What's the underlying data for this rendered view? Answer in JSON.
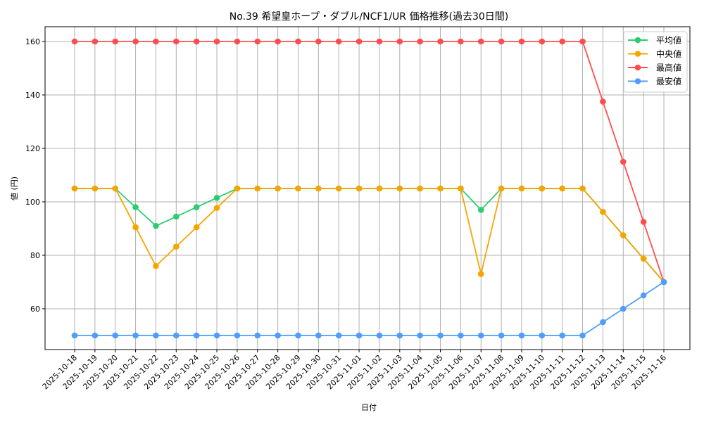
{
  "chart_data": {
    "type": "line",
    "title": "No.39 希望皇ホープ・ダブル/NCF1/UR 価格推移(過去30日間)",
    "xlabel": "日付",
    "ylabel": "値 (円)",
    "ylim": [
      45,
      165
    ],
    "yticks": [
      60,
      80,
      100,
      120,
      140,
      160
    ],
    "grid": true,
    "legend_position": "upper right",
    "x": [
      "2025-10-18",
      "2025-10-19",
      "2025-10-20",
      "2025-10-21",
      "2025-10-22",
      "2025-10-23",
      "2025-10-24",
      "2025-10-25",
      "2025-10-26",
      "2025-10-27",
      "2025-10-28",
      "2025-10-29",
      "2025-10-30",
      "2025-10-31",
      "2025-11-01",
      "2025-11-02",
      "2025-11-03",
      "2025-11-04",
      "2025-11-05",
      "2025-11-06",
      "2025-11-07",
      "2025-11-08",
      "2025-11-09",
      "2025-11-10",
      "2025-11-11",
      "2025-11-12",
      "2025-11-13",
      "2025-11-14",
      "2025-11-15",
      "2025-11-16"
    ],
    "series": [
      {
        "name": "平均値",
        "color": "#2ecc71",
        "values": [
          105,
          105,
          105,
          98,
          91,
          94.5,
          98,
          101.5,
          105,
          105,
          105,
          105,
          105,
          105,
          105,
          105,
          105,
          105,
          105,
          105,
          97,
          105,
          105,
          105,
          105,
          105,
          96.25,
          87.5,
          78.75,
          70
        ]
      },
      {
        "name": "中央値",
        "color": "#f5a500",
        "values": [
          105,
          105,
          105,
          90.5,
          76,
          83.25,
          90.5,
          97.75,
          105,
          105,
          105,
          105,
          105,
          105,
          105,
          105,
          105,
          105,
          105,
          105,
          73,
          105,
          105,
          105,
          105,
          105,
          96.25,
          87.5,
          78.75,
          70
        ]
      },
      {
        "name": "最高値",
        "color": "#ff4d4f",
        "values": [
          160,
          160,
          160,
          160,
          160,
          160,
          160,
          160,
          160,
          160,
          160,
          160,
          160,
          160,
          160,
          160,
          160,
          160,
          160,
          160,
          160,
          160,
          160,
          160,
          160,
          160,
          137.5,
          115,
          92.5,
          70
        ]
      },
      {
        "name": "最安値",
        "color": "#4f9dff",
        "values": [
          50,
          50,
          50,
          50,
          50,
          50,
          50,
          50,
          50,
          50,
          50,
          50,
          50,
          50,
          50,
          50,
          50,
          50,
          50,
          50,
          50,
          50,
          50,
          50,
          50,
          50,
          55,
          60,
          65,
          70
        ]
      }
    ]
  }
}
